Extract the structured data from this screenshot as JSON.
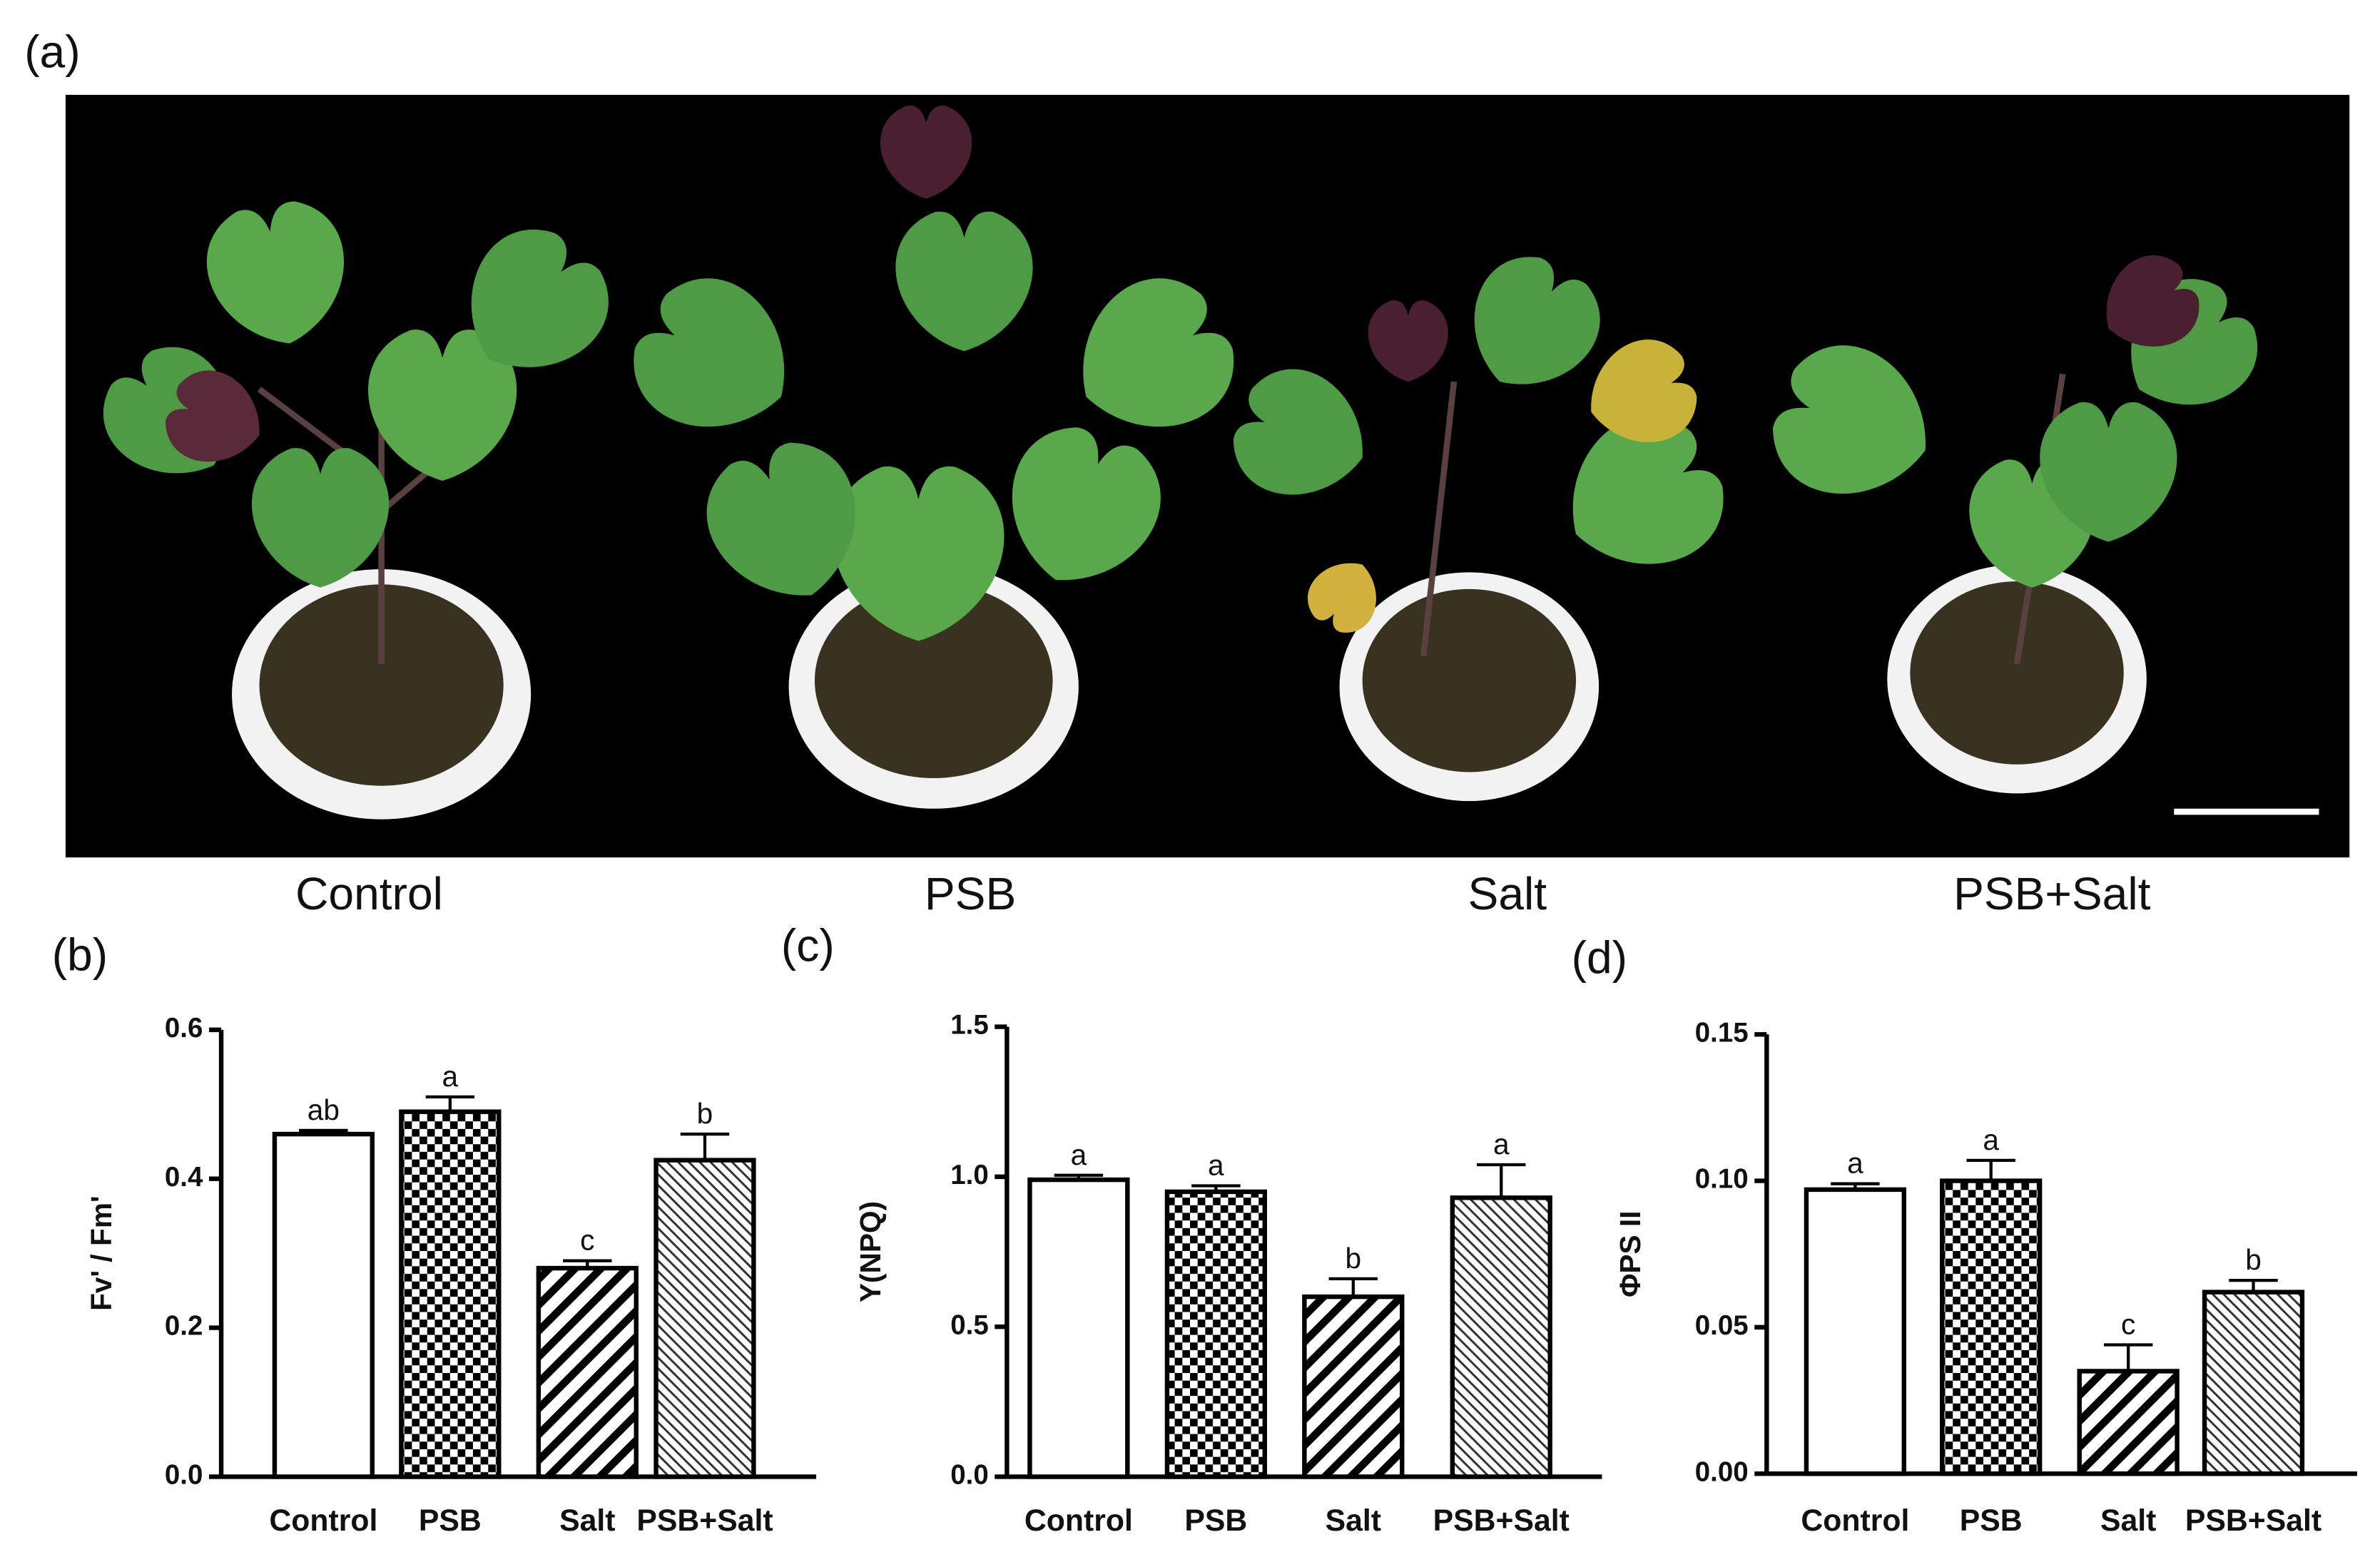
{
  "photo": {
    "panel_label": "(a)",
    "captions": [
      "Control",
      "PSB",
      "Salt",
      "PSB+Salt"
    ]
  },
  "chart_data": [
    {
      "type": "bar",
      "panel_label": "(b)",
      "ylabel": "Fv' / Fm'",
      "categories": [
        "Control",
        "PSB",
        "Salt",
        "PSB+Salt"
      ],
      "values": [
        0.46,
        0.49,
        0.28,
        0.425
      ],
      "errors": [
        0.005,
        0.02,
        0.01,
        0.035
      ],
      "annotations": [
        "ab",
        "a",
        "c",
        "b"
      ],
      "color": "#000000",
      "ylim": [
        0,
        0.6
      ],
      "yticks": [
        {
          "value": 0,
          "label": "0.0"
        },
        {
          "value": 0.2,
          "label": "0.2"
        },
        {
          "value": 0.4,
          "label": "0.4"
        },
        {
          "value": 0.6,
          "label": "0.6"
        }
      ]
    },
    {
      "type": "bar",
      "panel_label": "(c)",
      "ylabel": "Y(NPQ)",
      "categories": [
        "Control",
        "PSB",
        "Salt",
        "PSB+Salt"
      ],
      "values": [
        0.99,
        0.95,
        0.6,
        0.93
      ],
      "errors": [
        0.015,
        0.02,
        0.06,
        0.11
      ],
      "annotations": [
        "a",
        "a",
        "b",
        "a"
      ],
      "color": "#000000",
      "ylim": [
        0,
        1.5
      ],
      "yticks": [
        {
          "value": 0,
          "label": "0.0"
        },
        {
          "value": 0.5,
          "label": "0.5"
        },
        {
          "value": 1,
          "label": "1.0"
        },
        1.5
      ]
    },
    {
      "type": "bar",
      "panel_label": "(d)",
      "ylabel": "ΦPS II",
      "categories": [
        "Control",
        "PSB",
        "Salt",
        "PSB+Salt"
      ],
      "values": [
        0.097,
        0.1,
        0.035,
        0.062
      ],
      "errors": [
        0.002,
        0.007,
        0.009,
        0.004
      ],
      "annotations": [
        "a",
        "a",
        "c",
        "b"
      ],
      "color": "#000000",
      "ylim": [
        0,
        0.15
      ],
      "yticks": [
        {
          "value": 0,
          "label": "0.00"
        },
        0.05,
        {
          "value": 0.1,
          "label": "0.10"
        },
        0.15
      ]
    }
  ]
}
